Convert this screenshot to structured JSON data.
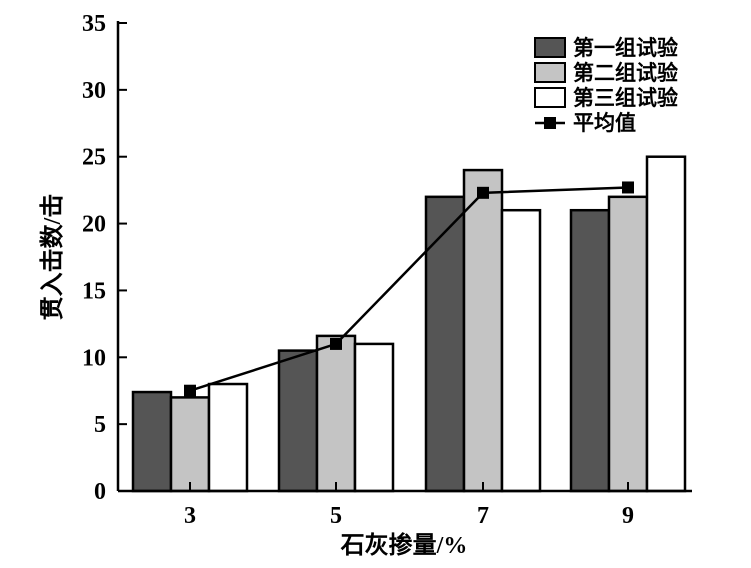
{
  "chart_data": {
    "type": "bar",
    "xlabel": "石灰掺量/%",
    "ylabel": "贯入击数/击",
    "ylim": [
      0,
      35
    ],
    "yticks": [
      0,
      5,
      10,
      15,
      20,
      25,
      30,
      35
    ],
    "categories": [
      "3",
      "5",
      "7",
      "9"
    ],
    "series": [
      {
        "name": "第一组试验",
        "values": [
          7.4,
          10.5,
          22,
          21
        ],
        "color": "#555555"
      },
      {
        "name": "第二组试验",
        "values": [
          7.0,
          11.6,
          24,
          22
        ],
        "color": "#c4c4c4"
      },
      {
        "name": "第三组试验",
        "values": [
          8.0,
          11.0,
          21,
          25
        ],
        "color": "#ffffff"
      }
    ],
    "line": {
      "name": "平均值",
      "values": [
        7.5,
        11.0,
        22.3,
        22.7
      ],
      "color": "#000000"
    },
    "legend": "top-right",
    "grid": false
  }
}
